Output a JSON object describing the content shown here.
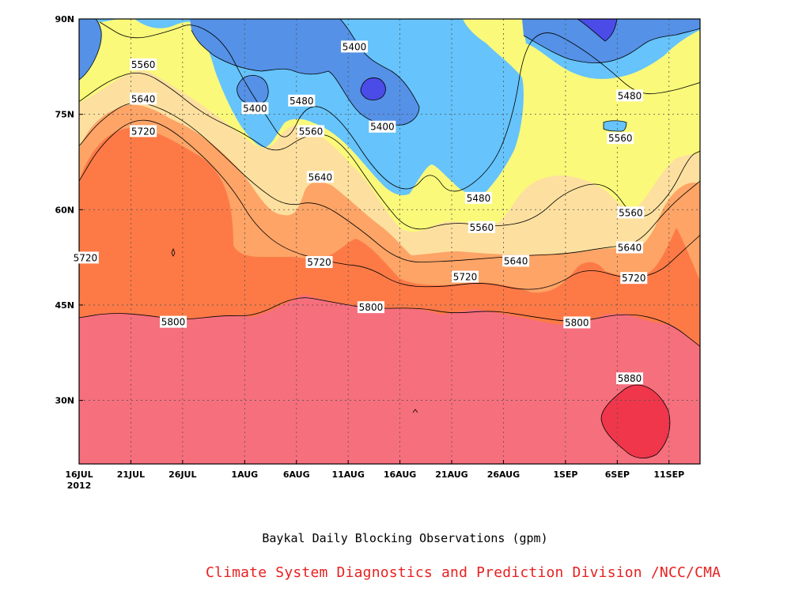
{
  "chart_data": {
    "type": "heatmap",
    "subtype": "filled-contour",
    "title": "Baykal Daily Blocking Observations (gpm)",
    "credit": "Climate System Diagnostics and Prediction Division /NCC/CMA",
    "x_start_label": "16JUL",
    "x_start_year": "2012",
    "x_ticks": [
      {
        "label": "16JUL",
        "day": 0
      },
      {
        "label": "21JUL",
        "day": 5
      },
      {
        "label": "26JUL",
        "day": 10
      },
      {
        "label": "1AUG",
        "day": 16
      },
      {
        "label": "6AUG",
        "day": 21
      },
      {
        "label": "11AUG",
        "day": 26
      },
      {
        "label": "16AUG",
        "day": 31
      },
      {
        "label": "21AUG",
        "day": 36
      },
      {
        "label": "26AUG",
        "day": 41
      },
      {
        "label": "1SEP",
        "day": 47
      },
      {
        "label": "6SEP",
        "day": 52
      },
      {
        "label": "11SEP",
        "day": 57
      }
    ],
    "x_range_days": [
      0,
      60
    ],
    "y_ticks": [
      {
        "label": "30N",
        "lat": 30
      },
      {
        "label": "45N",
        "lat": 45
      },
      {
        "label": "60N",
        "lat": 60
      },
      {
        "label": "75N",
        "lat": 75
      },
      {
        "label": "90N",
        "lat": 90
      }
    ],
    "y_range_lat": [
      20,
      90
    ],
    "grid": true,
    "levels": [
      {
        "min": 5320,
        "max": 5400,
        "color": "#4b4be8"
      },
      {
        "min": 5400,
        "max": 5480,
        "color": "#5591e6"
      },
      {
        "min": 5480,
        "max": 5560,
        "color": "#66c3fb"
      },
      {
        "min": 5560,
        "max": 5640,
        "color": "#faf97a"
      },
      {
        "min": 5640,
        "max": 5720,
        "color": "#fde09f"
      },
      {
        "min": 5720,
        "max": 5800,
        "color": "#fda466"
      },
      {
        "min": 5800,
        "max": 5880,
        "color": "#fd7a47"
      },
      {
        "min": 5880,
        "max": 5960,
        "color": "#f66f7d"
      },
      {
        "min": 5960,
        "max": 6040,
        "color": "#ef364a"
      }
    ],
    "isolines": [
      {
        "level": 5800,
        "points": [
          [
            0,
            43
          ],
          [
            3,
            43.8
          ],
          [
            6,
            43.5
          ],
          [
            10,
            42.6
          ],
          [
            14,
            43.4
          ],
          [
            17,
            43.2
          ],
          [
            21,
            46.5
          ],
          [
            24,
            45.6
          ],
          [
            28,
            44.4
          ],
          [
            33,
            44.6
          ],
          [
            36,
            43.6
          ],
          [
            40,
            44.2
          ],
          [
            44,
            43.1
          ],
          [
            48,
            42.2
          ],
          [
            53,
            43.9
          ],
          [
            57,
            42.3
          ],
          [
            60,
            38.5
          ]
        ]
      },
      {
        "level": 5720,
        "points": [
          [
            0,
            64.5
          ],
          [
            2,
            70
          ],
          [
            5,
            74.3
          ],
          [
            8,
            73.8
          ],
          [
            12,
            68.5
          ],
          [
            15,
            63
          ],
          [
            17,
            57.5
          ],
          [
            20,
            53.5
          ],
          [
            25,
            51.5
          ],
          [
            28,
            51
          ],
          [
            31,
            48
          ],
          [
            35,
            47.8
          ],
          [
            39,
            48.7
          ],
          [
            43,
            47.2
          ],
          [
            46,
            48
          ],
          [
            49,
            51
          ],
          [
            53,
            49
          ],
          [
            56,
            50
          ],
          [
            58,
            53
          ],
          [
            60,
            56
          ]
        ]
      },
      {
        "level": 5640,
        "points": [
          [
            0,
            70
          ],
          [
            2,
            74
          ],
          [
            5,
            77.3
          ],
          [
            8,
            76
          ],
          [
            11,
            73
          ],
          [
            14,
            68.5
          ],
          [
            17,
            63.8
          ],
          [
            20,
            60.4
          ],
          [
            23,
            61.5
          ],
          [
            27,
            57.2
          ],
          [
            31,
            51.7
          ],
          [
            35,
            51.8
          ],
          [
            39,
            52.3
          ],
          [
            43,
            52.8
          ],
          [
            47,
            53
          ],
          [
            51,
            54.1
          ],
          [
            54,
            54.5
          ],
          [
            57,
            60.5
          ],
          [
            60,
            64.5
          ]
        ]
      },
      {
        "level": 5560,
        "points": [
          [
            0,
            77
          ],
          [
            3,
            80.5
          ],
          [
            6,
            82
          ],
          [
            9,
            79
          ],
          [
            12,
            75
          ],
          [
            16,
            72
          ],
          [
            19,
            68.5
          ],
          [
            22,
            72
          ],
          [
            25,
            71.6
          ],
          [
            29,
            62
          ],
          [
            32,
            56.2
          ],
          [
            36,
            58.2
          ],
          [
            40,
            57.2
          ],
          [
            44,
            58.3
          ],
          [
            47,
            63
          ],
          [
            51,
            64.7
          ],
          [
            54,
            57.6
          ],
          [
            57,
            62
          ],
          [
            59,
            68.5
          ],
          [
            60,
            69.2
          ]
        ]
      },
      {
        "level": 5480,
        "points": [
          [
            2,
            89.5
          ],
          [
            5,
            86.5
          ],
          [
            9,
            88.2
          ],
          [
            11,
            89.5
          ],
          [
            14,
            86.5
          ],
          [
            16,
            80
          ],
          [
            18,
            75
          ],
          [
            20,
            70
          ],
          [
            22,
            77
          ],
          [
            25,
            75
          ],
          [
            29,
            65
          ],
          [
            32,
            62.5
          ],
          [
            34,
            66.5
          ],
          [
            36,
            61.7
          ],
          [
            40,
            66.5
          ],
          [
            42,
            75
          ],
          [
            43,
            85.5
          ],
          [
            45,
            88.5
          ],
          [
            48,
            86
          ],
          [
            51,
            82.4
          ],
          [
            54,
            78
          ],
          [
            57,
            78.5
          ],
          [
            60,
            80
          ]
        ]
      }
    ],
    "labels": [
      {
        "text": "5400",
        "day": 26.6,
        "lat": 85.6
      },
      {
        "text": "5400",
        "day": 17,
        "lat": 75.9
      },
      {
        "text": "5400",
        "day": 29.3,
        "lat": 73
      },
      {
        "text": "5480",
        "day": 53.2,
        "lat": 77.9
      },
      {
        "text": "5480",
        "day": 21.5,
        "lat": 77.1
      },
      {
        "text": "5480",
        "day": 38.6,
        "lat": 61.8
      },
      {
        "text": "5560",
        "day": 6.2,
        "lat": 82.8
      },
      {
        "text": "5560",
        "day": 22.4,
        "lat": 72.3
      },
      {
        "text": "5560",
        "day": 52.3,
        "lat": 71.2
      },
      {
        "text": "5560",
        "day": 53.3,
        "lat": 59.5
      },
      {
        "text": "5560",
        "day": 38.9,
        "lat": 57.2
      },
      {
        "text": "5640",
        "day": 6.2,
        "lat": 77.4
      },
      {
        "text": "5640",
        "day": 23.3,
        "lat": 65.1
      },
      {
        "text": "5640",
        "day": 42.2,
        "lat": 51.9
      },
      {
        "text": "5640",
        "day": 53.2,
        "lat": 54
      },
      {
        "text": "5720",
        "day": 6.2,
        "lat": 72.3
      },
      {
        "text": "5720",
        "day": 0.6,
        "lat": 52.4
      },
      {
        "text": "5720",
        "day": 23.2,
        "lat": 51.7
      },
      {
        "text": "5720",
        "day": 37.3,
        "lat": 49.4
      },
      {
        "text": "5720",
        "day": 53.6,
        "lat": 49.2
      },
      {
        "text": "5800",
        "day": 9.1,
        "lat": 42.3
      },
      {
        "text": "5800",
        "day": 28.2,
        "lat": 44.6
      },
      {
        "text": "5800",
        "day": 48.1,
        "lat": 42.2
      },
      {
        "text": "5880",
        "day": 53.2,
        "lat": 33.4
      }
    ]
  }
}
